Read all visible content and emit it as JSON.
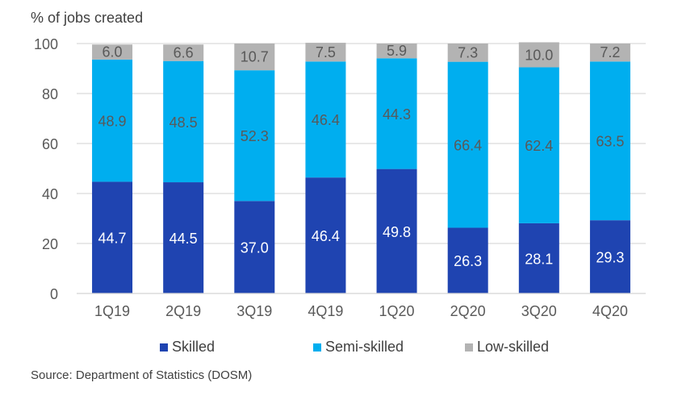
{
  "chart_data": {
    "type": "bar",
    "stacked": true,
    "ylabel": "% of jobs created",
    "ylim": [
      0,
      100
    ],
    "yticks": [
      0,
      20,
      40,
      60,
      80,
      100
    ],
    "grid": true,
    "legend_position": "bottom",
    "categories": [
      "1Q19",
      "2Q19",
      "3Q19",
      "4Q19",
      "1Q20",
      "2Q20",
      "3Q20",
      "4Q20"
    ],
    "series": [
      {
        "name": "Skilled",
        "color": "#1F44B1",
        "label_color": "#FFFFFF",
        "values": [
          44.7,
          44.5,
          37.0,
          46.4,
          49.8,
          26.3,
          28.1,
          29.3
        ]
      },
      {
        "name": "Semi-skilled",
        "color": "#00AEEF",
        "label_color": "#595959",
        "values": [
          48.9,
          48.5,
          52.3,
          46.4,
          44.3,
          66.4,
          62.4,
          63.5
        ]
      },
      {
        "name": "Low-skilled",
        "color": "#B3B3B3",
        "label_color": "#595959",
        "values": [
          6.0,
          6.6,
          10.7,
          7.5,
          5.9,
          7.3,
          10.0,
          7.2
        ]
      }
    ],
    "source": "Source: Department of Statistics (DOSM)"
  }
}
